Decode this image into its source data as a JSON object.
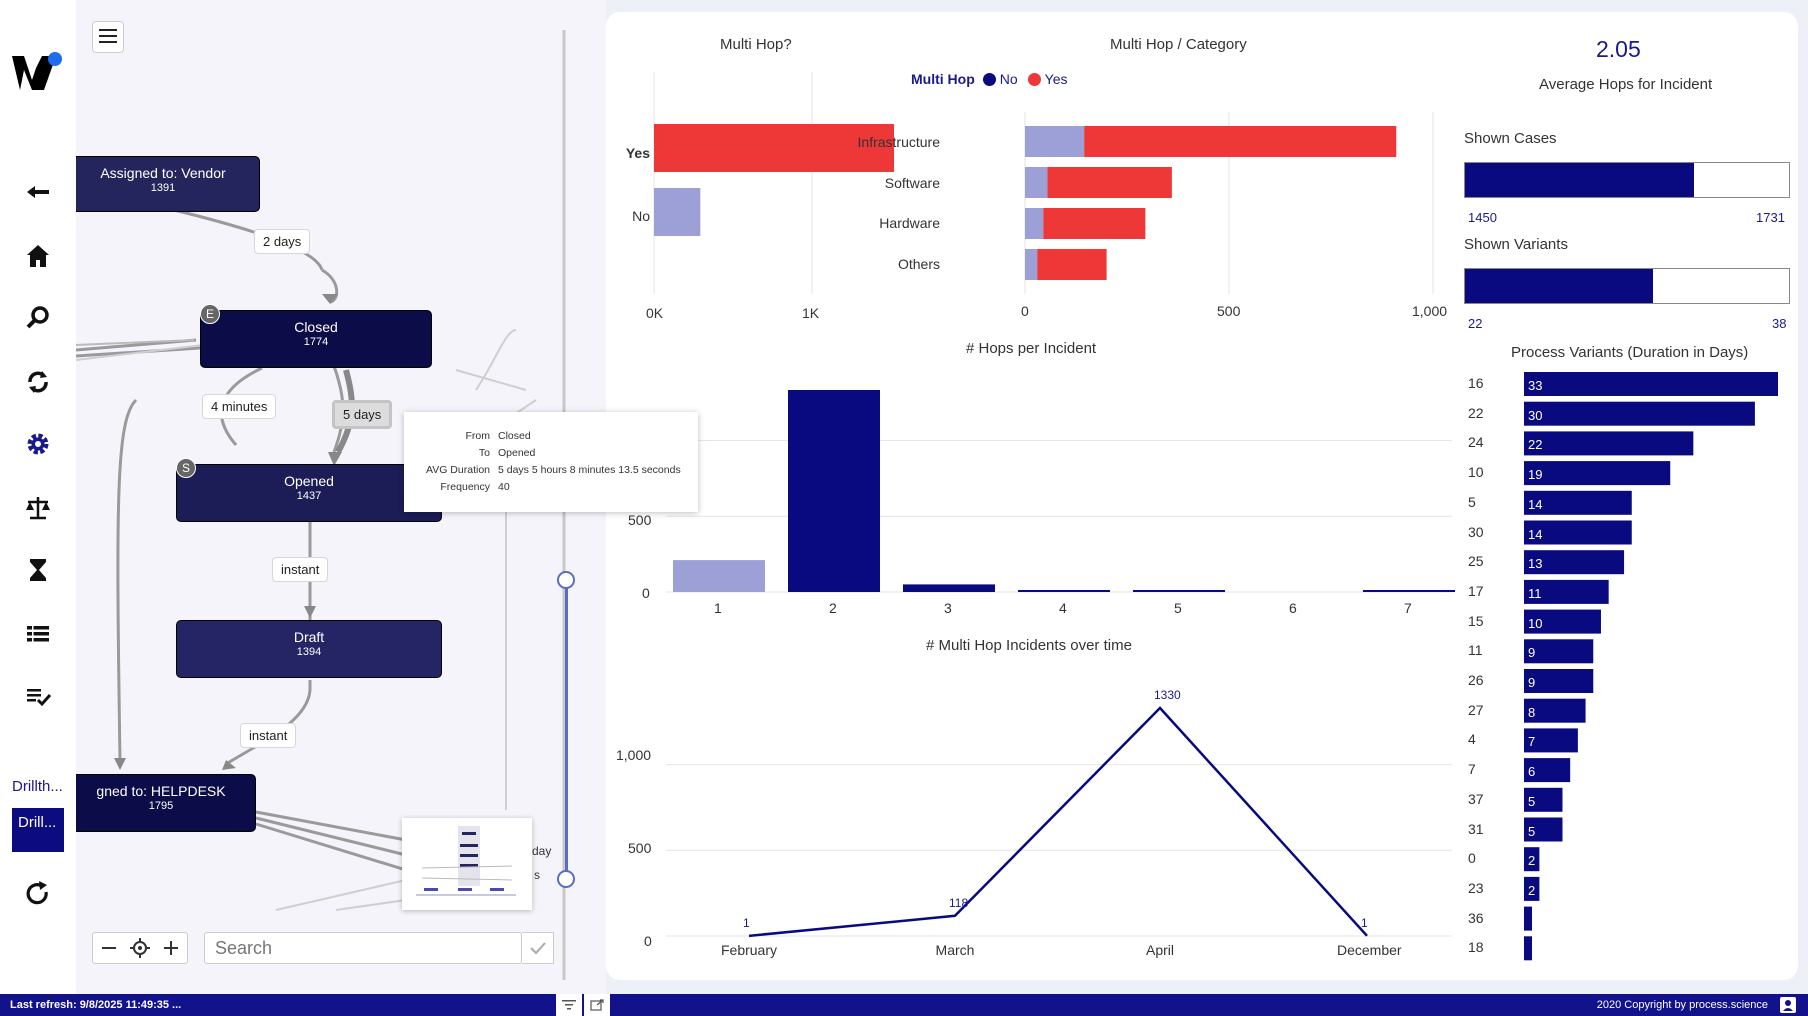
{
  "nav": {
    "icons": [
      "back-arrow-icon",
      "home-icon",
      "search-icon",
      "refresh-cycle-icon",
      "gear-icon",
      "scale-icon",
      "hourglass-icon",
      "table-icon",
      "checklist-icon"
    ],
    "drill_label": "Drillth...",
    "drill_button": "Drill...",
    "reload_icon": "reload-icon"
  },
  "map": {
    "nodes": [
      {
        "label": "Assigned to: Vendor",
        "count": "1391"
      },
      {
        "label": "Closed",
        "count": "1774"
      },
      {
        "label": "Opened",
        "count": "1437"
      },
      {
        "label": "Draft",
        "count": "1394"
      },
      {
        "label": "gned to: HELPDESK",
        "count": "1795"
      }
    ],
    "badges": {
      "closed": "E",
      "opened": "S"
    },
    "edge_labels": [
      "2 days",
      "4 minutes",
      "5 days",
      "instant",
      "instant"
    ],
    "tooltip": {
      "rows": [
        {
          "key": "From",
          "value": "Closed"
        },
        {
          "key": "To",
          "value": "Opened"
        },
        {
          "key": "AVG Duration",
          "value": "5 days 5 hours 8 minutes 13.5 seconds"
        },
        {
          "key": "Frequency",
          "value": "40"
        }
      ]
    },
    "search_placeholder": "Search",
    "minimap_partial_text": [
      "day",
      "s"
    ]
  },
  "colors": {
    "dark_navy": "#0c0c55",
    "navy": "#0a0a80",
    "light_purple": "#9da0d6",
    "red": "#ee3838",
    "footer": "#12128a"
  },
  "chart_data": [
    {
      "type": "bar",
      "title": "Multi Hop?",
      "orientation": "horizontal",
      "categories": [
        "Yes",
        "No"
      ],
      "values": [
        1450,
        280
      ],
      "colors": [
        "#ee3838",
        "#9da0d6"
      ],
      "xticks": [
        "0K",
        "1K"
      ],
      "xlim": [
        0,
        1450
      ]
    },
    {
      "type": "bar",
      "title": "Multi Hop / Category",
      "orientation": "horizontal",
      "stacked": true,
      "legend_title": "Multi Hop",
      "legend": [
        "No",
        "Yes"
      ],
      "categories": [
        "Infrastructure",
        "Software",
        "Hardware",
        "Others"
      ],
      "series": [
        {
          "name": "No",
          "values": [
            145,
            55,
            45,
            30
          ]
        },
        {
          "name": "Yes",
          "values": [
            765,
            305,
            250,
            170
          ]
        }
      ],
      "xticks": [
        "0",
        "500",
        "1,000"
      ],
      "xlim": [
        0,
        1000
      ]
    },
    {
      "type": "bar",
      "title": "# Hops per Incident",
      "categories": [
        "1",
        "2",
        "3",
        "4",
        "5",
        "6",
        "7"
      ],
      "values": [
        210,
        1330,
        50,
        8,
        8,
        0,
        8
      ],
      "highlight": [
        true,
        false,
        false,
        false,
        false,
        false,
        false
      ],
      "yticks": [
        "0",
        "500"
      ],
      "ylim": [
        0,
        1330
      ]
    },
    {
      "type": "line",
      "title": "# Multi Hop Incidents over time",
      "categories": [
        "February",
        "March",
        "April",
        "December"
      ],
      "values": [
        1,
        118,
        1330,
        1
      ],
      "data_labels": [
        "1",
        "118",
        "1330",
        "1"
      ],
      "yticks": [
        "0",
        "500",
        "1,000"
      ],
      "ylim": [
        0,
        1330
      ]
    },
    {
      "type": "kpi",
      "value": "2.05",
      "label": "Average Hops for Incident"
    },
    {
      "type": "bar",
      "title": "Shown Cases",
      "orientation": "horizontal",
      "value": 1450,
      "max": 1731,
      "min_label": "1450",
      "max_label": "1731"
    },
    {
      "type": "bar",
      "title": "Shown Variants",
      "orientation": "horizontal",
      "value": 22,
      "max": 38,
      "min_label": "22",
      "max_label": "38"
    },
    {
      "type": "bar",
      "title": "Process Variants (Duration in Days)",
      "orientation": "horizontal",
      "categories": [
        "16",
        "22",
        "24",
        "10",
        "5",
        "30",
        "25",
        "17",
        "15",
        "11",
        "26",
        "27",
        "4",
        "7",
        "37",
        "31",
        "0",
        "23",
        "36",
        "18"
      ],
      "values": [
        33,
        30,
        22,
        19,
        14,
        14,
        13,
        11,
        10,
        9,
        9,
        8,
        7,
        6,
        5,
        5,
        2,
        2,
        1,
        1
      ],
      "labels": [
        "33",
        "30",
        "22",
        "19",
        "14",
        "14",
        "13",
        "11",
        "10",
        "9",
        "9",
        "8",
        "7",
        "6",
        "5",
        "5",
        "2",
        "2",
        "",
        ""
      ],
      "xlim": [
        0,
        33
      ]
    }
  ],
  "footer": {
    "last_refresh": "Last refresh: 9/8/2025 11:49:35 ...",
    "copyright": "2020 Copyright by process.science"
  }
}
